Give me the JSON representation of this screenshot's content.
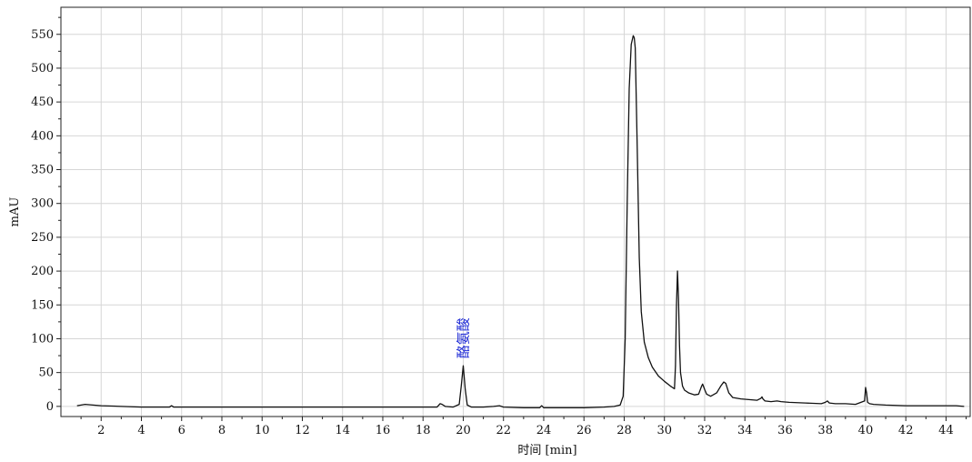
{
  "chart_data": {
    "type": "line",
    "xlabel": "时间 [min]",
    "ylabel": "mAU",
    "xlim": [
      0,
      45.2
    ],
    "ylim": [
      -15,
      590
    ],
    "xticks": [
      2,
      4,
      6,
      8,
      10,
      12,
      14,
      16,
      18,
      20,
      22,
      24,
      26,
      28,
      30,
      32,
      34,
      36,
      38,
      40,
      42,
      44
    ],
    "yticks": [
      0,
      50,
      100,
      150,
      200,
      250,
      300,
      350,
      400,
      450,
      500,
      550
    ],
    "grid": true,
    "annotations": [
      {
        "text": "酪氨酸",
        "x": 20.0,
        "y": 60
      }
    ],
    "series": [
      {
        "x": [
          0.8,
          1.0,
          1.2,
          1.6,
          2.0,
          3.0,
          4.0,
          5.0,
          5.4,
          5.5,
          5.6,
          6.0,
          8.0,
          10.0,
          12.0,
          14.0,
          16.0,
          18.0,
          18.7,
          18.85,
          18.95,
          19.1,
          19.5,
          19.8,
          19.9,
          20.0,
          20.1,
          20.2,
          20.4,
          21.0,
          21.5,
          21.8,
          22.0,
          23.0,
          23.8,
          23.9,
          24.0,
          25.0,
          26.0,
          27.0,
          27.5,
          27.8,
          27.95,
          28.05,
          28.15,
          28.25,
          28.35,
          28.45,
          28.5,
          28.55,
          28.65,
          28.75,
          28.85,
          29.0,
          29.2,
          29.4,
          29.7,
          30.0,
          30.3,
          30.5,
          30.55,
          30.6,
          30.65,
          30.7,
          30.75,
          30.8,
          30.9,
          31.0,
          31.2,
          31.5,
          31.7,
          31.85,
          31.9,
          32.0,
          32.1,
          32.3,
          32.6,
          32.8,
          32.95,
          33.05,
          33.2,
          33.4,
          33.8,
          34.2,
          34.6,
          34.8,
          34.85,
          34.9,
          35.0,
          35.3,
          35.6,
          35.8,
          36.2,
          37.0,
          37.8,
          38.0,
          38.1,
          38.2,
          38.5,
          39.0,
          39.5,
          39.95,
          40.0,
          40.05,
          40.1,
          40.2,
          40.4,
          41.0,
          42.0,
          43.0,
          44.0,
          44.5,
          44.9
        ],
        "y": [
          1,
          2,
          3,
          2,
          1,
          0,
          -1,
          -1,
          -1,
          1,
          -1,
          -1,
          -1,
          -1,
          -1,
          -1,
          -1,
          -1,
          -1,
          4,
          3,
          0,
          -1,
          3,
          30,
          60,
          25,
          2,
          -1,
          -1,
          0,
          1,
          -1,
          -2,
          -2,
          1,
          -2,
          -2,
          -2,
          -1,
          0,
          2,
          15,
          100,
          300,
          470,
          535,
          548,
          545,
          530,
          380,
          220,
          140,
          95,
          72,
          58,
          45,
          37,
          30,
          26,
          60,
          150,
          200,
          160,
          90,
          50,
          30,
          24,
          20,
          17,
          18,
          30,
          33,
          25,
          18,
          15,
          20,
          30,
          36,
          34,
          20,
          13,
          11,
          10,
          9,
          12,
          14,
          11,
          8,
          7,
          8,
          7,
          6,
          5,
          4,
          6,
          8,
          5,
          4,
          4,
          3,
          8,
          28,
          20,
          6,
          4,
          3,
          2,
          1,
          1,
          1,
          1,
          0
        ]
      }
    ]
  }
}
